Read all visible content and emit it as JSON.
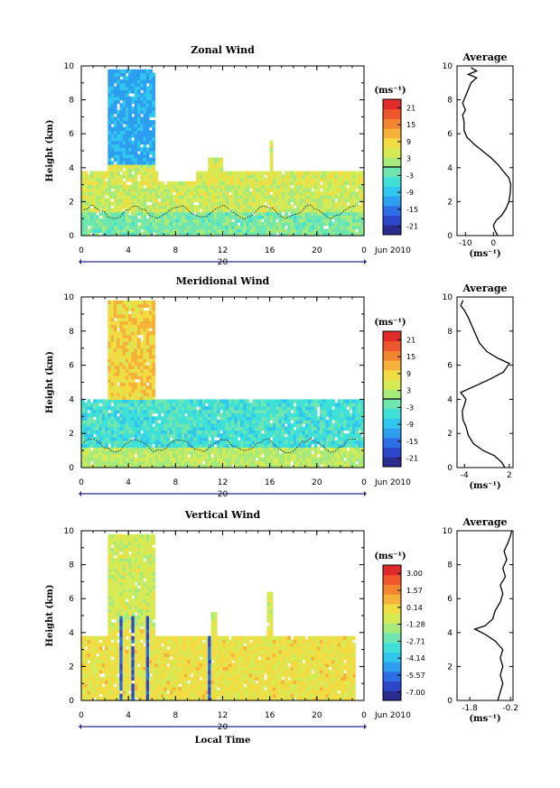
{
  "chart_data": [
    {
      "type": "heatmap",
      "title": "Zonal Wind",
      "ylabel": "Height (km)",
      "xticks": [
        "0",
        "4",
        "8",
        "12",
        "16",
        "20",
        "0"
      ],
      "yticks": [
        "0",
        "2",
        "4",
        "6",
        "8",
        "10"
      ],
      "xlim": [
        0,
        24
      ],
      "ylim": [
        0,
        10
      ],
      "date_row": {
        "day": "20",
        "month": "Jun 2010"
      },
      "colorbar": {
        "unit": "(ms⁻¹)",
        "ticks": [
          "21",
          "15",
          "9",
          "3",
          "-3",
          "-9",
          "-15",
          "-21"
        ],
        "range": [
          -24,
          24
        ]
      },
      "avg_profile": {
        "title": "Average",
        "xlabel": "(ms⁻¹)",
        "xticks": [
          "-10",
          "0"
        ],
        "xlim": [
          -13,
          7
        ],
        "yticks": [
          "0",
          "2",
          "4",
          "6",
          "8",
          "10"
        ],
        "ylim": [
          0,
          10
        ],
        "points": [
          [
            1.5,
            0
          ],
          [
            0.5,
            0.3
          ],
          [
            0,
            0.6
          ],
          [
            1,
            0.9
          ],
          [
            3,
            1.2
          ],
          [
            4.5,
            1.6
          ],
          [
            5.5,
            2.0
          ],
          [
            6,
            2.5
          ],
          [
            6.2,
            3.0
          ],
          [
            5.5,
            3.4
          ],
          [
            3.5,
            3.8
          ],
          [
            1.5,
            4.2
          ],
          [
            -1,
            4.6
          ],
          [
            -4,
            5.0
          ],
          [
            -7,
            5.4
          ],
          [
            -9.5,
            5.8
          ],
          [
            -10.5,
            6.2
          ],
          [
            -10.5,
            6.7
          ],
          [
            -11,
            7.1
          ],
          [
            -10,
            7.4
          ],
          [
            -11,
            7.8
          ],
          [
            -10,
            8.2
          ],
          [
            -9,
            8.6
          ],
          [
            -8,
            9.0
          ],
          [
            -6,
            9.3
          ],
          [
            -9,
            9.5
          ],
          [
            -6,
            9.7
          ],
          [
            -8,
            9.9
          ]
        ]
      }
    },
    {
      "type": "heatmap",
      "title": "Meridional Wind",
      "ylabel": "Height (km)",
      "xticks": [
        "0",
        "4",
        "8",
        "12",
        "16",
        "20",
        "0"
      ],
      "yticks": [
        "0",
        "2",
        "4",
        "6",
        "8",
        "10"
      ],
      "xlim": [
        0,
        24
      ],
      "ylim": [
        0,
        10
      ],
      "date_row": {
        "day": "20",
        "month": "Jun 2010"
      },
      "colorbar": {
        "unit": "(ms⁻¹)",
        "ticks": [
          "21",
          "15",
          "9",
          "3",
          "-3",
          "-9",
          "-15",
          "-21"
        ],
        "range": [
          -24,
          24
        ]
      },
      "avg_profile": {
        "title": "Average",
        "xlabel": "(ms⁻¹)",
        "xticks": [
          "-4",
          "2"
        ],
        "xlim": [
          -5,
          2.5
        ],
        "yticks": [
          "0",
          "2",
          "4",
          "6",
          "8",
          "10"
        ],
        "ylim": [
          0,
          10
        ],
        "points": [
          [
            1.4,
            0
          ],
          [
            1.0,
            0.3
          ],
          [
            0,
            0.7
          ],
          [
            -1.5,
            1.0
          ],
          [
            -2.8,
            1.4
          ],
          [
            -3.5,
            1.9
          ],
          [
            -3.8,
            2.4
          ],
          [
            -4.2,
            2.8
          ],
          [
            -4.3,
            3.3
          ],
          [
            -4.0,
            3.7
          ],
          [
            -3.8,
            4.0
          ],
          [
            -4.5,
            4.4
          ],
          [
            -2.5,
            4.8
          ],
          [
            -0.5,
            5.2
          ],
          [
            1.2,
            5.6
          ],
          [
            2.0,
            6.1
          ],
          [
            0.5,
            6.4
          ],
          [
            -1.0,
            6.8
          ],
          [
            -2.0,
            7.3
          ],
          [
            -2.5,
            7.8
          ],
          [
            -3.0,
            8.3
          ],
          [
            -3.5,
            8.8
          ],
          [
            -4.0,
            9.2
          ],
          [
            -4.5,
            9.5
          ],
          [
            -4.2,
            9.8
          ]
        ]
      }
    },
    {
      "type": "heatmap",
      "title": "Vertical Wind",
      "ylabel": "Height (km)",
      "xlabel": "Local Time",
      "xticks": [
        "0",
        "4",
        "8",
        "12",
        "16",
        "20",
        "0"
      ],
      "yticks": [
        "0",
        "2",
        "4",
        "6",
        "8",
        "10"
      ],
      "xlim": [
        0,
        24
      ],
      "ylim": [
        0,
        10
      ],
      "date_row": {
        "day": "20",
        "month": "Jun 2010"
      },
      "colorbar": {
        "unit": "(ms⁻¹)",
        "ticks": [
          "3.00",
          "1.57",
          "0.14",
          "-1.28",
          "-2.71",
          "-4.14",
          "-5.57",
          "-7.00"
        ],
        "range": [
          -7.7,
          3.7
        ]
      },
      "avg_profile": {
        "title": "Average",
        "xlabel": "(ms⁻¹)",
        "xticks": [
          "-1.8",
          "-0.2"
        ],
        "xlim": [
          -2.3,
          -0.1
        ],
        "yticks": [
          "0",
          "2",
          "4",
          "6",
          "8",
          "10"
        ],
        "ylim": [
          0,
          10
        ],
        "points": [
          [
            -0.7,
            0
          ],
          [
            -0.6,
            0.5
          ],
          [
            -0.5,
            1.0
          ],
          [
            -0.6,
            1.5
          ],
          [
            -0.5,
            2.0
          ],
          [
            -0.6,
            2.5
          ],
          [
            -0.5,
            3.0
          ],
          [
            -0.8,
            3.5
          ],
          [
            -1.2,
            3.9
          ],
          [
            -1.6,
            4.2
          ],
          [
            -1.2,
            4.4
          ],
          [
            -0.9,
            4.8
          ],
          [
            -0.8,
            5.3
          ],
          [
            -0.6,
            5.8
          ],
          [
            -0.5,
            6.3
          ],
          [
            -0.6,
            6.8
          ],
          [
            -0.4,
            7.3
          ],
          [
            -0.5,
            7.8
          ],
          [
            -0.35,
            8.3
          ],
          [
            -0.45,
            8.8
          ],
          [
            -0.3,
            9.3
          ],
          [
            -0.2,
            9.7
          ],
          [
            -0.15,
            10.0
          ]
        ]
      }
    }
  ]
}
